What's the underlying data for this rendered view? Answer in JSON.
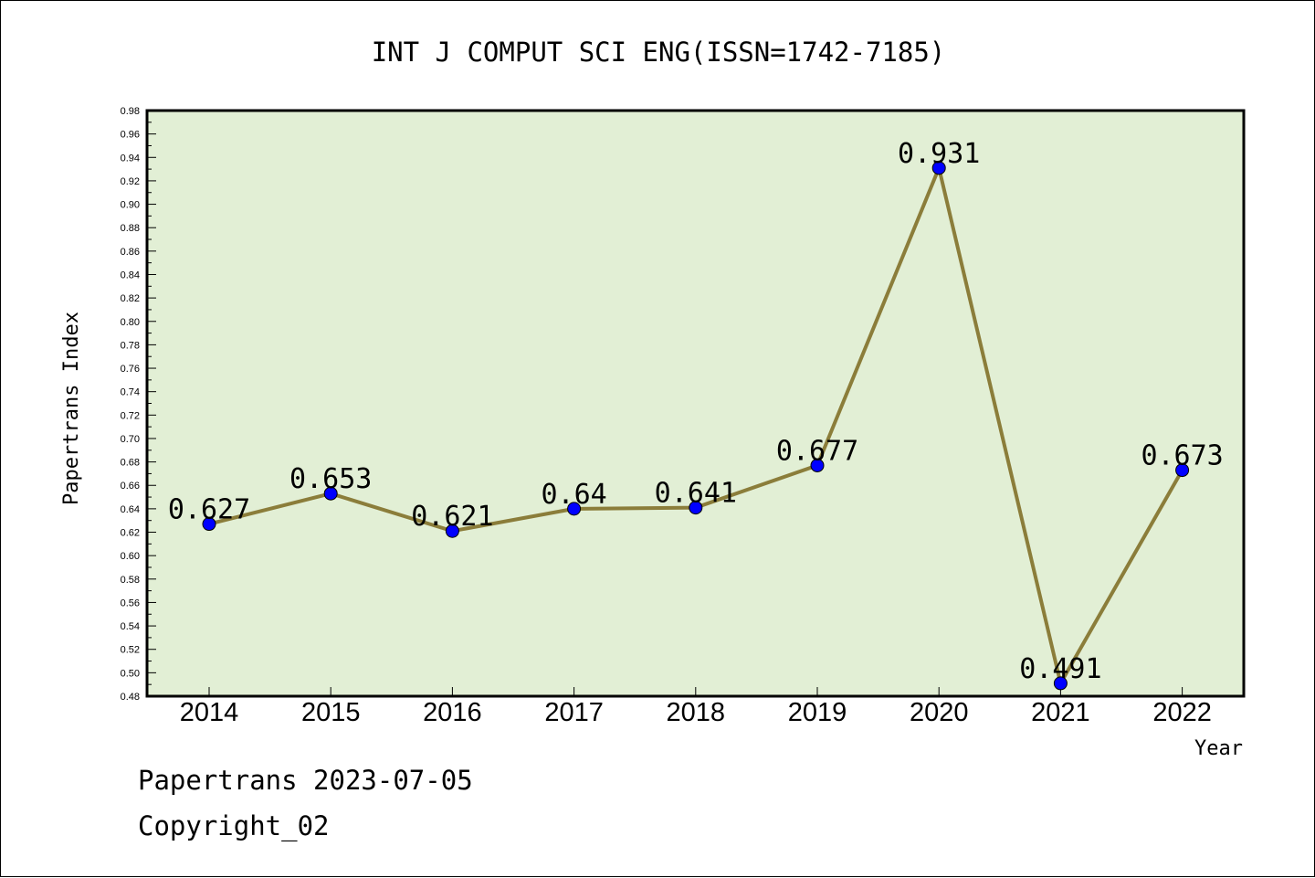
{
  "chart_data": {
    "type": "line",
    "title": "INT J COMPUT SCI ENG(ISSN=1742-7185)",
    "xlabel": "Year",
    "ylabel": "Papertrans Index",
    "categories": [
      "2014",
      "2015",
      "2016",
      "2017",
      "2018",
      "2019",
      "2020",
      "2021",
      "2022"
    ],
    "series": [
      {
        "values": [
          0.627,
          0.653,
          0.621,
          0.64,
          0.641,
          0.677,
          0.931,
          0.491,
          0.673
        ],
        "labels": [
          "0.627",
          "0.653",
          "0.621",
          "0.64",
          "0.641",
          "0.677",
          "0.931",
          "0.491",
          "0.673"
        ]
      }
    ],
    "ylim": [
      0.48,
      0.98
    ],
    "ytick_step": 0.02,
    "grid": false,
    "colors": {
      "plot_background": "#e2efd5",
      "line": "#8b7d3a",
      "marker": "#0000ff"
    }
  },
  "footer": {
    "line1": "Papertrans 2023-07-05",
    "line2": "Copyright_02"
  }
}
